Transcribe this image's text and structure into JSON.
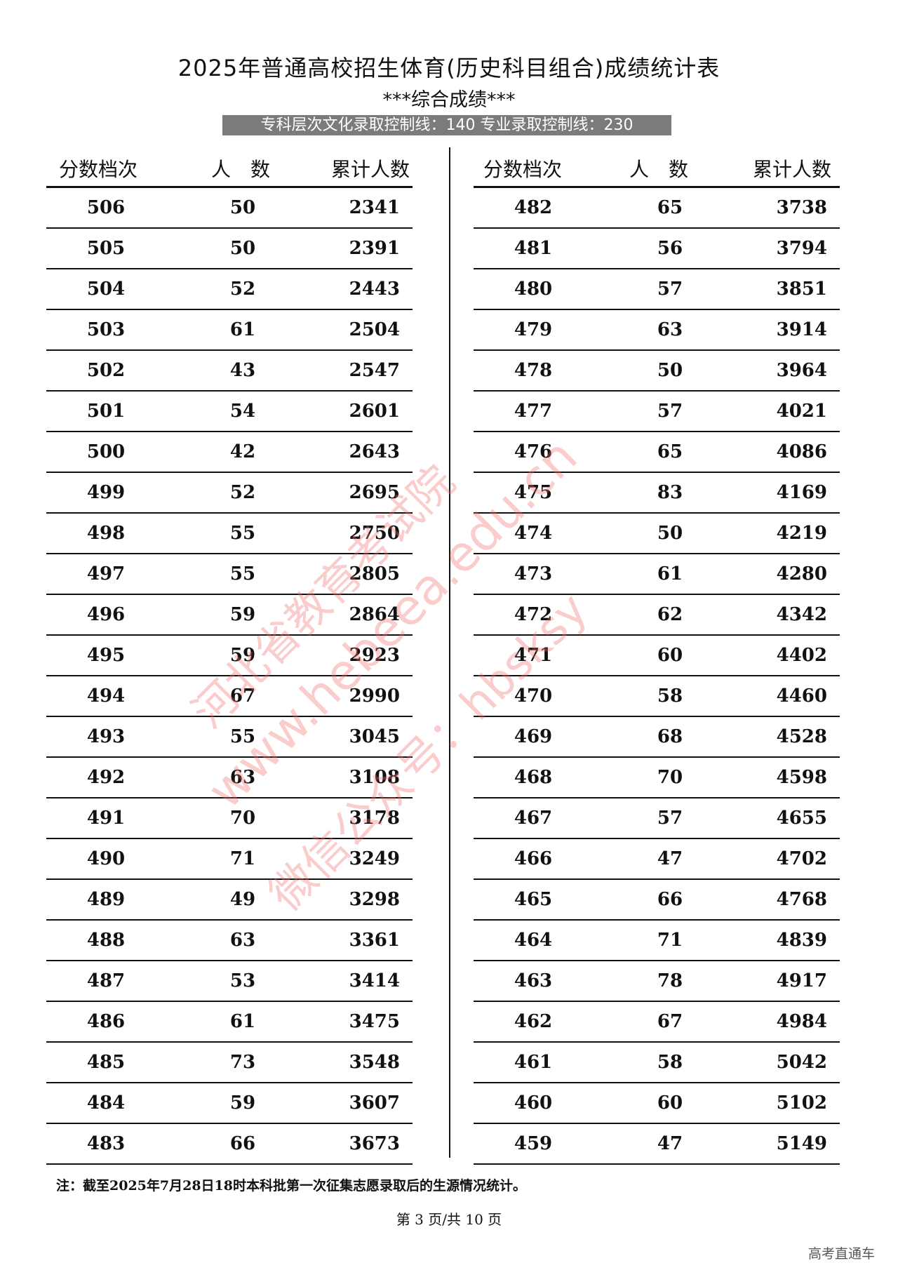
{
  "title": "2025年普通高校招生体育(历史科目组合)成绩统计表",
  "subtitle": "***综合成绩***",
  "banner": "专科层次文化录取控制线：140  专业录取控制线：230",
  "headers": {
    "score": "分数档次",
    "count": "人　数",
    "cumulative": "累计人数"
  },
  "left_rows": [
    [
      "506",
      "50",
      "2341"
    ],
    [
      "505",
      "50",
      "2391"
    ],
    [
      "504",
      "52",
      "2443"
    ],
    [
      "503",
      "61",
      "2504"
    ],
    [
      "502",
      "43",
      "2547"
    ],
    [
      "501",
      "54",
      "2601"
    ],
    [
      "500",
      "42",
      "2643"
    ],
    [
      "499",
      "52",
      "2695"
    ],
    [
      "498",
      "55",
      "2750"
    ],
    [
      "497",
      "55",
      "2805"
    ],
    [
      "496",
      "59",
      "2864"
    ],
    [
      "495",
      "59",
      "2923"
    ],
    [
      "494",
      "67",
      "2990"
    ],
    [
      "493",
      "55",
      "3045"
    ],
    [
      "492",
      "63",
      "3108"
    ],
    [
      "491",
      "70",
      "3178"
    ],
    [
      "490",
      "71",
      "3249"
    ],
    [
      "489",
      "49",
      "3298"
    ],
    [
      "488",
      "63",
      "3361"
    ],
    [
      "487",
      "53",
      "3414"
    ],
    [
      "486",
      "61",
      "3475"
    ],
    [
      "485",
      "73",
      "3548"
    ],
    [
      "484",
      "59",
      "3607"
    ],
    [
      "483",
      "66",
      "3673"
    ]
  ],
  "right_rows": [
    [
      "482",
      "65",
      "3738"
    ],
    [
      "481",
      "56",
      "3794"
    ],
    [
      "480",
      "57",
      "3851"
    ],
    [
      "479",
      "63",
      "3914"
    ],
    [
      "478",
      "50",
      "3964"
    ],
    [
      "477",
      "57",
      "4021"
    ],
    [
      "476",
      "65",
      "4086"
    ],
    [
      "475",
      "83",
      "4169"
    ],
    [
      "474",
      "50",
      "4219"
    ],
    [
      "473",
      "61",
      "4280"
    ],
    [
      "472",
      "62",
      "4342"
    ],
    [
      "471",
      "60",
      "4402"
    ],
    [
      "470",
      "58",
      "4460"
    ],
    [
      "469",
      "68",
      "4528"
    ],
    [
      "468",
      "70",
      "4598"
    ],
    [
      "467",
      "57",
      "4655"
    ],
    [
      "466",
      "47",
      "4702"
    ],
    [
      "465",
      "66",
      "4768"
    ],
    [
      "464",
      "71",
      "4839"
    ],
    [
      "463",
      "78",
      "4917"
    ],
    [
      "462",
      "67",
      "4984"
    ],
    [
      "461",
      "58",
      "5042"
    ],
    [
      "460",
      "60",
      "5102"
    ],
    [
      "459",
      "47",
      "5149"
    ]
  ],
  "note": "注：截至2025年7月28日18时本科批第一次征集志愿录取后的生源情况统计。",
  "page_number": "第 3 页/共 10 页",
  "watermarks": [
    "河北省教育考试院",
    "www.hebeea.edu.cn",
    "微信公众号：hbsksy"
  ],
  "corner_mark": "高考直通车"
}
